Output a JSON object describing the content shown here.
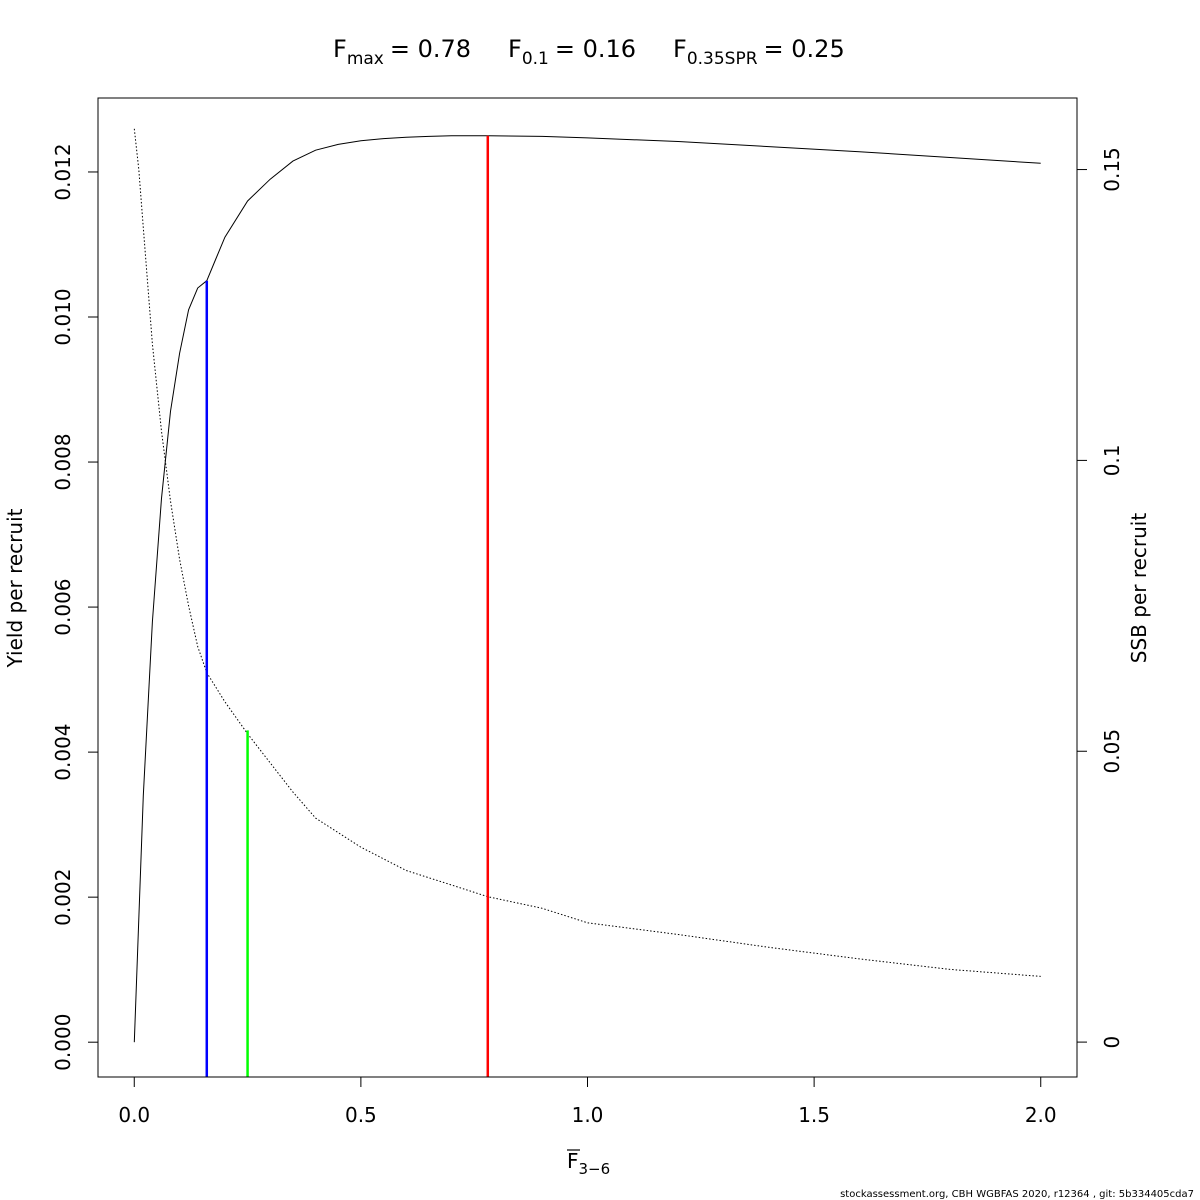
{
  "chart_data": {
    "type": "line",
    "title": {
      "fmax": {
        "symbol": "F",
        "sub": "max",
        "text": "= 0.78"
      },
      "f01": {
        "symbol": "F",
        "sub": "0.1",
        "text": "= 0.16"
      },
      "f035": {
        "symbol": "F",
        "sub": "0.35SPR",
        "text": "= 0.25"
      }
    },
    "xlabel": {
      "symbol": "F",
      "sub": "3−6"
    },
    "ylabel_left": "Yield per recruit",
    "ylabel_right": "SSB per recruit",
    "xlim": [
      -0.08,
      2.08
    ],
    "ylim_left": [
      -0.00048,
      0.01302
    ],
    "ylim_right": [
      -0.006,
      0.1623
    ],
    "x_ticks": [
      0.0,
      0.5,
      1.0,
      1.5,
      2.0
    ],
    "x_tick_labels": [
      "0.0",
      "0.5",
      "1.0",
      "1.5",
      "2.0"
    ],
    "y_left_ticks": [
      0.0,
      0.002,
      0.004,
      0.006,
      0.008,
      0.01,
      0.012
    ],
    "y_left_tick_labels": [
      "0.000",
      "0.002",
      "0.004",
      "0.006",
      "0.008",
      "0.010",
      "0.012"
    ],
    "y_right_ticks": [
      0,
      0.05,
      0.1,
      0.15
    ],
    "y_right_tick_labels": [
      "0",
      "0.05",
      "0.1",
      "0.15"
    ],
    "series": [
      {
        "axis": "left",
        "style": "solid",
        "color": "#000000",
        "x": [
          0.0,
          0.02,
          0.04,
          0.06,
          0.08,
          0.1,
          0.12,
          0.14,
          0.16,
          0.18,
          0.2,
          0.25,
          0.3,
          0.35,
          0.4,
          0.45,
          0.5,
          0.55,
          0.6,
          0.65,
          0.7,
          0.78,
          0.9,
          1.0,
          1.2,
          1.4,
          1.6,
          1.8,
          2.0
        ],
        "y": [
          0.0,
          0.0034,
          0.0058,
          0.0075,
          0.0087,
          0.0095,
          0.0101,
          0.0104,
          0.0105,
          0.0108,
          0.0111,
          0.0116,
          0.0119,
          0.01215,
          0.0123,
          0.01238,
          0.01243,
          0.01246,
          0.01248,
          0.01249,
          0.0125,
          0.0125,
          0.01249,
          0.01247,
          0.01242,
          0.01235,
          0.01228,
          0.0122,
          0.01212
        ]
      },
      {
        "axis": "right",
        "style": "dotted",
        "color": "#000000",
        "x": [
          0.0,
          0.01,
          0.02,
          0.04,
          0.06,
          0.08,
          0.1,
          0.12,
          0.14,
          0.16,
          0.2,
          0.25,
          0.3,
          0.35,
          0.4,
          0.5,
          0.6,
          0.7,
          0.78,
          0.9,
          1.0,
          1.2,
          1.4,
          1.6,
          1.8,
          2.0
        ],
        "y": [
          0.157,
          0.15,
          0.14,
          0.12,
          0.105,
          0.093,
          0.083,
          0.075,
          0.068,
          0.0635,
          0.0585,
          0.053,
          0.048,
          0.043,
          0.0385,
          0.0335,
          0.0295,
          0.027,
          0.025,
          0.023,
          0.0205,
          0.0185,
          0.0163,
          0.0143,
          0.0125,
          0.0113
        ]
      }
    ],
    "reference_lines": [
      {
        "x": 0.16,
        "y_top": 0.0105,
        "color": "#0000ff"
      },
      {
        "x": 0.25,
        "y_top": 0.0043,
        "color": "#00ff00"
      },
      {
        "x": 0.78,
        "y_top": 0.0125,
        "color": "#ff0000"
      }
    ],
    "footer": "stockassessment.org, CBH  WGBFAS  2020, r12364 , git: 5b334405cda7"
  }
}
